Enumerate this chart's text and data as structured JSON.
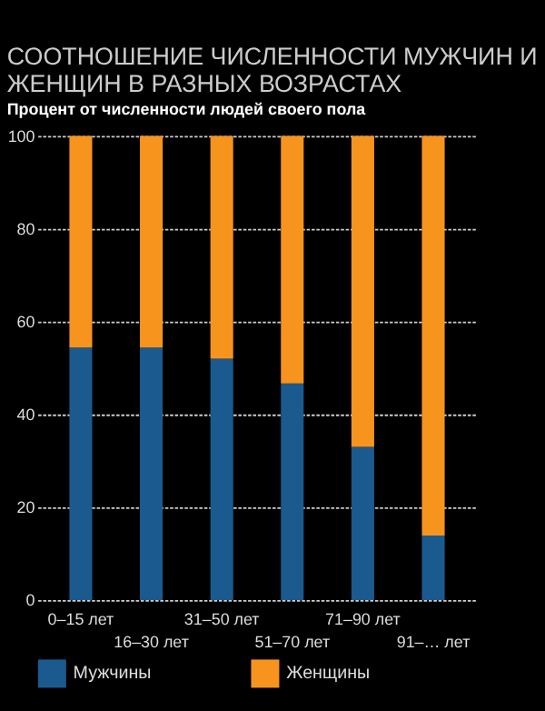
{
  "chart_data": {
    "type": "bar",
    "stacked": true,
    "title": "СООТНОШЕНИЕ ЧИСЛЕННОСТИ МУЖЧИН И ЖЕНЩИН В РАЗНЫХ ВОЗРАСТАХ",
    "subtitle": "Процент от численности людей своего пола",
    "categories": [
      "0–15 лет",
      "16–30 лет",
      "31–50 лет",
      "51–70 лет",
      "71–90 лет",
      "91–… лет"
    ],
    "series": [
      {
        "name": "Мужчины",
        "color": "#1b5a8e",
        "values": [
          54.4,
          54.4,
          52,
          46.7,
          33,
          13.9
        ]
      },
      {
        "name": "Женщины",
        "color": "#f7941d",
        "values": [
          45.6,
          45.6,
          48,
          53.3,
          67,
          86.1
        ]
      }
    ],
    "ylim": [
      0,
      100
    ],
    "yticks": [
      0,
      20,
      40,
      60,
      80,
      100
    ],
    "grid": "y",
    "legend": "bottom"
  }
}
